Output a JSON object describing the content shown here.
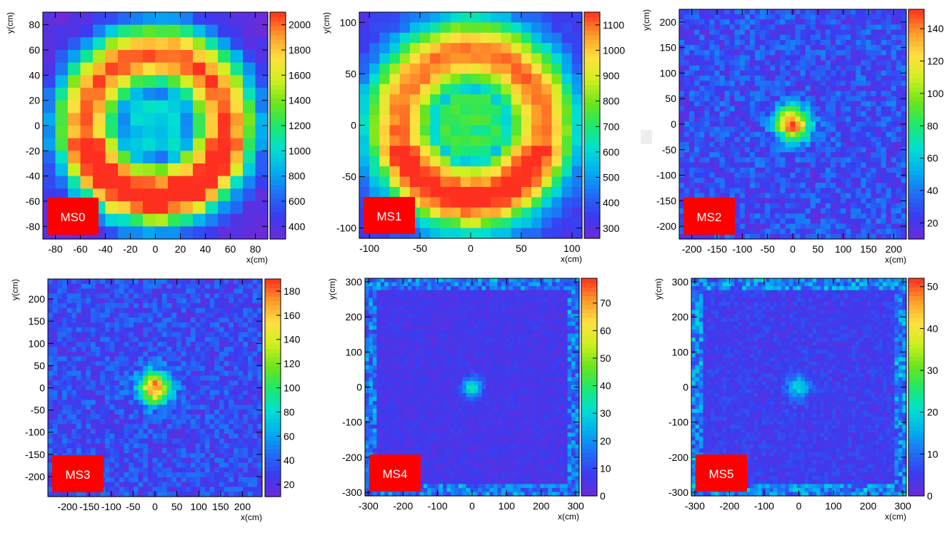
{
  "chart_data": [
    {
      "type": "heatmap",
      "label": "MS0",
      "xlabel": "x(cm)",
      "ylabel": "y(cm)",
      "xlim": [
        -90,
        90
      ],
      "ylim": [
        -90,
        90
      ],
      "xticks": [
        -80,
        -60,
        -40,
        -20,
        0,
        20,
        40,
        60,
        80
      ],
      "yticks": [
        -80,
        -60,
        -40,
        -20,
        0,
        20,
        40,
        60,
        80
      ],
      "zlim": [
        300,
        2100
      ],
      "zticks": [
        400,
        600,
        800,
        1000,
        1200,
        1400,
        1600,
        1800,
        2000
      ],
      "bins": 18,
      "pattern": "ring",
      "peak": 2050,
      "floor": 320,
      "ring_radius_frac": 0.33,
      "ring_width_frac": 0.2,
      "center_min": 950
    },
    {
      "type": "heatmap",
      "label": "MS1",
      "xlabel": "x(cm)",
      "ylabel": "y(cm)",
      "xlim": [
        -110,
        110
      ],
      "ylim": [
        -110,
        110
      ],
      "xticks": [
        -100,
        -50,
        0,
        50,
        100
      ],
      "yticks": [
        -100,
        -50,
        0,
        50,
        100
      ],
      "zlim": [
        260,
        1150
      ],
      "zticks": [
        300,
        400,
        500,
        600,
        700,
        800,
        900,
        1000,
        1100
      ],
      "bins": 22,
      "pattern": "ring",
      "peak": 1100,
      "floor": 330,
      "ring_radius_frac": 0.34,
      "ring_width_frac": 0.22,
      "center_min": 720
    },
    {
      "type": "heatmap",
      "label": "MS2",
      "xlabel": "x(cm)",
      "ylabel": "y(cm)",
      "xlim": [
        -225,
        225
      ],
      "ylim": [
        -225,
        225
      ],
      "xticks": [
        -200,
        -150,
        -100,
        -50,
        0,
        50,
        100,
        150,
        200
      ],
      "yticks": [
        -200,
        -150,
        -100,
        -50,
        0,
        50,
        100,
        150,
        200
      ],
      "zlim": [
        10,
        152
      ],
      "zticks": [
        20,
        40,
        60,
        80,
        100,
        120,
        140
      ],
      "bins": 45,
      "pattern": "peak",
      "peak": 150,
      "floor": 28,
      "halo": 45,
      "halo_frac": 0.12,
      "core_frac": 0.015
    },
    {
      "type": "heatmap",
      "label": "MS3",
      "xlabel": "x(cm)",
      "ylabel": "y(cm)",
      "xlim": [
        -245,
        245
      ],
      "ylim": [
        -245,
        245
      ],
      "xticks": [
        -200,
        -150,
        -100,
        -50,
        0,
        50,
        100,
        150,
        200
      ],
      "yticks": [
        -200,
        -150,
        -100,
        -50,
        0,
        50,
        100,
        150,
        200
      ],
      "zlim": [
        10,
        190
      ],
      "zticks": [
        20,
        40,
        60,
        80,
        100,
        120,
        140,
        160,
        180
      ],
      "bins": 45,
      "pattern": "peak",
      "peak": 180,
      "floor": 32,
      "halo": 55,
      "halo_frac": 0.12,
      "core_frac": 0.015
    },
    {
      "type": "heatmap",
      "label": "MS4",
      "xlabel": "x(cm)",
      "ylabel": "y(cm)",
      "xlim": [
        -310,
        310
      ],
      "ylim": [
        -310,
        310
      ],
      "xticks": [
        -300,
        -200,
        -100,
        0,
        100,
        200,
        300
      ],
      "yticks": [
        -300,
        -200,
        -100,
        0,
        100,
        200,
        300
      ],
      "zlim": [
        0,
        79
      ],
      "zticks": [
        0,
        10,
        20,
        30,
        40,
        50,
        60,
        70
      ],
      "bins": 55,
      "pattern": "peak",
      "peak": 35,
      "floor": 6,
      "halo": 12,
      "halo_frac": 0.06,
      "core_frac": 0.01,
      "edge": 20
    },
    {
      "type": "heatmap",
      "label": "MS5",
      "xlabel": "x(cm)",
      "ylabel": "y(cm)",
      "xlim": [
        -310,
        310
      ],
      "ylim": [
        -310,
        310
      ],
      "xticks": [
        -300,
        -200,
        -100,
        0,
        100,
        200,
        300
      ],
      "yticks": [
        -300,
        -200,
        -100,
        0,
        100,
        200,
        300
      ],
      "zlim": [
        0,
        52
      ],
      "zticks": [
        0,
        10,
        20,
        30,
        40,
        50
      ],
      "bins": 55,
      "pattern": "peak",
      "peak": 20,
      "floor": 5,
      "halo": 9,
      "halo_frac": 0.08,
      "core_frac": 0.01,
      "edge": 14
    }
  ],
  "colors": {
    "palette": [
      "#6b2bd9",
      "#3b3bf0",
      "#1f6ff5",
      "#00b0f0",
      "#00e0d0",
      "#1ee86a",
      "#6ee51a",
      "#d0f020",
      "#ffe040",
      "#ff9a2a",
      "#ff3020"
    ],
    "label_box": "#ff0000",
    "label_text": "#ffffff",
    "axis": "#000000"
  }
}
